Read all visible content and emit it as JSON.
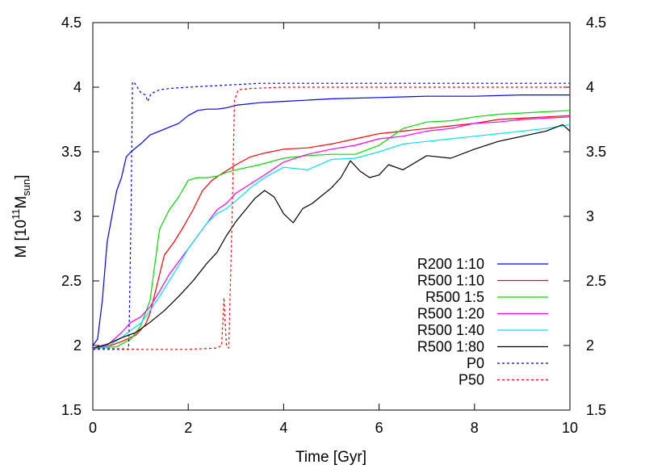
{
  "chart_data": {
    "type": "line",
    "xlabel": "Time [Gyr]",
    "ylabel": {
      "base": "M [10",
      "exp": "11",
      "mid": "M",
      "sub": "sun",
      "end": "]"
    },
    "xlim": [
      0,
      10
    ],
    "ylim": [
      1.5,
      4.5
    ],
    "x_ticks": [
      0,
      2,
      4,
      6,
      8,
      10
    ],
    "y_ticks": [
      1.5,
      2,
      2.5,
      3,
      3.5,
      4,
      4.5
    ],
    "x_tick_labels": [
      "0",
      "2",
      "4",
      "6",
      "8",
      "10"
    ],
    "y_tick_labels": [
      "1.5",
      "2",
      "2.5",
      "3",
      "3.5",
      "4",
      "4.5"
    ],
    "legend_position": "bottom-right",
    "grid": false,
    "series": [
      {
        "name": "R200 1:10",
        "color": "#0000ff",
        "dash": "solid",
        "points": [
          [
            0,
            2.0
          ],
          [
            0.1,
            2.05
          ],
          [
            0.2,
            2.35
          ],
          [
            0.3,
            2.8
          ],
          [
            0.4,
            3.0
          ],
          [
            0.5,
            3.2
          ],
          [
            0.6,
            3.3
          ],
          [
            0.7,
            3.46
          ],
          [
            0.8,
            3.5
          ],
          [
            1.0,
            3.56
          ],
          [
            1.2,
            3.63
          ],
          [
            1.4,
            3.66
          ],
          [
            1.6,
            3.69
          ],
          [
            1.8,
            3.72
          ],
          [
            2.0,
            3.78
          ],
          [
            2.2,
            3.82
          ],
          [
            2.4,
            3.83
          ],
          [
            2.6,
            3.83
          ],
          [
            2.8,
            3.84
          ],
          [
            3.0,
            3.86
          ],
          [
            3.5,
            3.88
          ],
          [
            4.0,
            3.89
          ],
          [
            5.0,
            3.91
          ],
          [
            6.0,
            3.92
          ],
          [
            7.0,
            3.93
          ],
          [
            8.0,
            3.93
          ],
          [
            9.0,
            3.94
          ],
          [
            10.0,
            3.94
          ]
        ]
      },
      {
        "name": "R500 1:10",
        "color": "#ff0000",
        "dash": "solid",
        "points": [
          [
            0,
            1.98
          ],
          [
            0.3,
            1.99
          ],
          [
            0.6,
            2.03
          ],
          [
            0.9,
            2.08
          ],
          [
            1.1,
            2.16
          ],
          [
            1.2,
            2.25
          ],
          [
            1.3,
            2.4
          ],
          [
            1.4,
            2.55
          ],
          [
            1.5,
            2.7
          ],
          [
            1.7,
            2.8
          ],
          [
            1.9,
            2.92
          ],
          [
            2.1,
            3.05
          ],
          [
            2.3,
            3.2
          ],
          [
            2.5,
            3.28
          ],
          [
            2.7,
            3.33
          ],
          [
            3.0,
            3.4
          ],
          [
            3.3,
            3.46
          ],
          [
            3.6,
            3.49
          ],
          [
            4.0,
            3.52
          ],
          [
            4.5,
            3.53
          ],
          [
            5.0,
            3.56
          ],
          [
            5.5,
            3.6
          ],
          [
            6.0,
            3.64
          ],
          [
            6.5,
            3.66
          ],
          [
            7.0,
            3.68
          ],
          [
            7.5,
            3.7
          ],
          [
            8.0,
            3.72
          ],
          [
            8.5,
            3.75
          ],
          [
            9.0,
            3.76
          ],
          [
            9.5,
            3.77
          ],
          [
            10.0,
            3.78
          ]
        ]
      },
      {
        "name": "R500 1:5",
        "color": "#00dd00",
        "dash": "solid",
        "points": [
          [
            0,
            1.98
          ],
          [
            0.5,
            1.99
          ],
          [
            0.8,
            2.05
          ],
          [
            1.0,
            2.15
          ],
          [
            1.2,
            2.35
          ],
          [
            1.4,
            2.9
          ],
          [
            1.6,
            3.05
          ],
          [
            1.8,
            3.15
          ],
          [
            2.0,
            3.28
          ],
          [
            2.2,
            3.3
          ],
          [
            2.4,
            3.3
          ],
          [
            2.6,
            3.31
          ],
          [
            2.8,
            3.34
          ],
          [
            3.0,
            3.36
          ],
          [
            3.5,
            3.4
          ],
          [
            4.0,
            3.45
          ],
          [
            4.5,
            3.47
          ],
          [
            5.0,
            3.48
          ],
          [
            5.5,
            3.48
          ],
          [
            6.0,
            3.55
          ],
          [
            6.5,
            3.68
          ],
          [
            7.0,
            3.73
          ],
          [
            7.5,
            3.74
          ],
          [
            8.0,
            3.77
          ],
          [
            8.5,
            3.79
          ],
          [
            9.0,
            3.8
          ],
          [
            9.5,
            3.81
          ],
          [
            10.0,
            3.82
          ]
        ]
      },
      {
        "name": "R500 1:20",
        "color": "#ff00ff",
        "dash": "solid",
        "points": [
          [
            0,
            1.98
          ],
          [
            0.3,
            2.0
          ],
          [
            0.6,
            2.1
          ],
          [
            0.8,
            2.18
          ],
          [
            1.0,
            2.22
          ],
          [
            1.2,
            2.3
          ],
          [
            1.4,
            2.42
          ],
          [
            1.6,
            2.55
          ],
          [
            1.8,
            2.65
          ],
          [
            2.0,
            2.75
          ],
          [
            2.2,
            2.85
          ],
          [
            2.4,
            2.95
          ],
          [
            2.6,
            3.05
          ],
          [
            2.8,
            3.1
          ],
          [
            3.0,
            3.18
          ],
          [
            3.3,
            3.25
          ],
          [
            3.6,
            3.32
          ],
          [
            4.0,
            3.42
          ],
          [
            4.5,
            3.48
          ],
          [
            5.0,
            3.52
          ],
          [
            5.5,
            3.55
          ],
          [
            6.0,
            3.6
          ],
          [
            6.5,
            3.62
          ],
          [
            7.0,
            3.66
          ],
          [
            7.5,
            3.68
          ],
          [
            8.0,
            3.72
          ],
          [
            8.5,
            3.73
          ],
          [
            9.0,
            3.75
          ],
          [
            9.5,
            3.76
          ],
          [
            10.0,
            3.77
          ]
        ]
      },
      {
        "name": "R500 1:40",
        "color": "#00e5ee",
        "dash": "solid",
        "points": [
          [
            0,
            1.97
          ],
          [
            0.3,
            1.99
          ],
          [
            0.6,
            2.06
          ],
          [
            0.8,
            2.12
          ],
          [
            1.0,
            2.17
          ],
          [
            1.2,
            2.27
          ],
          [
            1.4,
            2.38
          ],
          [
            1.6,
            2.5
          ],
          [
            1.8,
            2.62
          ],
          [
            2.0,
            2.75
          ],
          [
            2.2,
            2.85
          ],
          [
            2.4,
            2.95
          ],
          [
            2.6,
            3.02
          ],
          [
            2.8,
            3.06
          ],
          [
            3.0,
            3.12
          ],
          [
            3.3,
            3.22
          ],
          [
            3.6,
            3.3
          ],
          [
            4.0,
            3.38
          ],
          [
            4.5,
            3.36
          ],
          [
            5.0,
            3.44
          ],
          [
            5.5,
            3.45
          ],
          [
            6.0,
            3.5
          ],
          [
            6.5,
            3.56
          ],
          [
            7.0,
            3.58
          ],
          [
            7.5,
            3.6
          ],
          [
            8.0,
            3.62
          ],
          [
            8.5,
            3.64
          ],
          [
            9.0,
            3.66
          ],
          [
            9.5,
            3.68
          ],
          [
            10.0,
            3.71
          ]
        ]
      },
      {
        "name": "R500 1:80",
        "color": "#000000",
        "dash": "solid",
        "points": [
          [
            0,
            1.98
          ],
          [
            0.3,
            2.01
          ],
          [
            0.6,
            2.06
          ],
          [
            0.9,
            2.1
          ],
          [
            1.2,
            2.18
          ],
          [
            1.5,
            2.27
          ],
          [
            1.8,
            2.38
          ],
          [
            2.1,
            2.5
          ],
          [
            2.4,
            2.64
          ],
          [
            2.6,
            2.72
          ],
          [
            2.8,
            2.85
          ],
          [
            3.0,
            2.96
          ],
          [
            3.2,
            3.05
          ],
          [
            3.4,
            3.14
          ],
          [
            3.6,
            3.2
          ],
          [
            3.8,
            3.15
          ],
          [
            4.0,
            3.02
          ],
          [
            4.2,
            2.95
          ],
          [
            4.4,
            3.06
          ],
          [
            4.6,
            3.1
          ],
          [
            4.8,
            3.16
          ],
          [
            5.0,
            3.22
          ],
          [
            5.2,
            3.3
          ],
          [
            5.4,
            3.43
          ],
          [
            5.6,
            3.35
          ],
          [
            5.8,
            3.3
          ],
          [
            6.0,
            3.32
          ],
          [
            6.2,
            3.4
          ],
          [
            6.5,
            3.36
          ],
          [
            7.0,
            3.47
          ],
          [
            7.5,
            3.45
          ],
          [
            8.0,
            3.52
          ],
          [
            8.5,
            3.58
          ],
          [
            9.0,
            3.62
          ],
          [
            9.5,
            3.66
          ],
          [
            9.85,
            3.71
          ],
          [
            10.0,
            3.66
          ]
        ]
      },
      {
        "name": "P0",
        "color": "#0000ff",
        "dash": "dotted",
        "points": [
          [
            0,
            1.97
          ],
          [
            0.75,
            1.97
          ],
          [
            0.76,
            2.1
          ],
          [
            0.8,
            3.0
          ],
          [
            0.83,
            4.04
          ],
          [
            0.88,
            4.03
          ],
          [
            1.0,
            3.96
          ],
          [
            1.1,
            3.94
          ],
          [
            1.15,
            3.89
          ],
          [
            1.22,
            3.95
          ],
          [
            1.4,
            3.98
          ],
          [
            1.6,
            3.99
          ],
          [
            2.0,
            4.0
          ],
          [
            2.5,
            4.01
          ],
          [
            3.0,
            4.02
          ],
          [
            3.5,
            4.03
          ],
          [
            4.0,
            4.03
          ],
          [
            6.0,
            4.03
          ],
          [
            8.0,
            4.03
          ],
          [
            10.0,
            4.03
          ]
        ]
      },
      {
        "name": "P50",
        "color": "#ff0000",
        "dash": "dotted",
        "points": [
          [
            0,
            1.98
          ],
          [
            1.0,
            1.97
          ],
          [
            2.0,
            1.97
          ],
          [
            2.6,
            1.98
          ],
          [
            2.7,
            2.0
          ],
          [
            2.75,
            2.37
          ],
          [
            2.8,
            2.0
          ],
          [
            2.85,
            1.98
          ],
          [
            2.92,
            3.0
          ],
          [
            2.97,
            3.9
          ],
          [
            3.05,
            3.98
          ],
          [
            3.3,
            3.99
          ],
          [
            4.0,
            4.0
          ],
          [
            5.0,
            4.0
          ],
          [
            6.0,
            4.0
          ],
          [
            7.0,
            4.0
          ],
          [
            8.0,
            4.0
          ],
          [
            9.0,
            4.0
          ],
          [
            10.0,
            4.0
          ]
        ]
      }
    ]
  }
}
